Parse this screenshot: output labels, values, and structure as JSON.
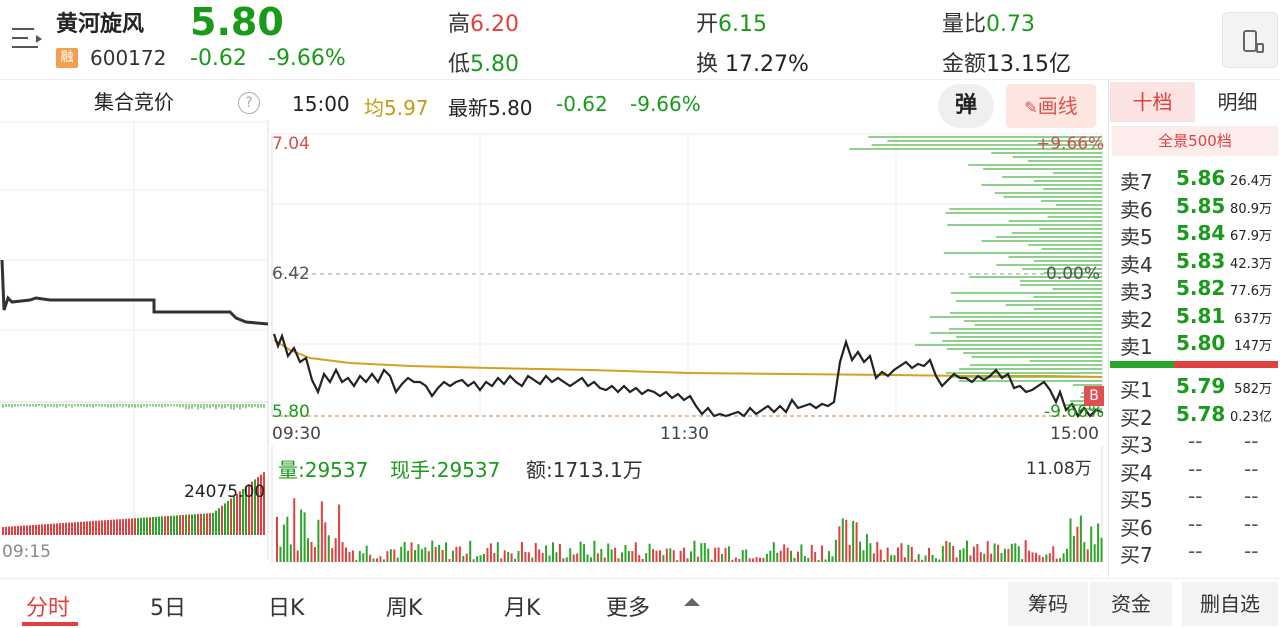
{
  "stock": {
    "name": "黄河旋风",
    "badge": "融",
    "code": "600172",
    "price": "5.80",
    "change": "-0.62",
    "change_pct": "-9.66%"
  },
  "quote": {
    "high_label": "高",
    "high": "6.20",
    "low_label": "低",
    "low": "5.80",
    "open_label": "开",
    "open": "6.15",
    "turnover_label": "换",
    "turnover": "17.27%",
    "vol_ratio_label": "量比",
    "vol_ratio": "0.73",
    "amount_label": "金额",
    "amount": "13.15亿"
  },
  "auction": {
    "title": "集合竞价",
    "help": "?",
    "vol_label": "24075.00",
    "time": "09:15"
  },
  "infobar": {
    "time": "15:00",
    "avg": "均5.97",
    "latest": "最新5.80",
    "change": "-0.62",
    "change_pct": "-9.66%"
  },
  "buttons": {
    "tan": "弹",
    "huaxian": "画线"
  },
  "chart": {
    "y_top": "7.04",
    "y_mid": "6.42",
    "y_bot": "5.80",
    "pct_top": "+9.66%",
    "pct_mid": "0.00%",
    "pct_bot": "-9.66%",
    "x_start": "09:30",
    "x_mid": "11:30",
    "x_end": "15:00",
    "marker": "B"
  },
  "volume_info": {
    "vol": "量:29537",
    "now_hand": "现手:29537",
    "amount": "额:1713.1万",
    "max": "11.08万"
  },
  "chart_data": {
    "type": "line",
    "x": [
      "09:30",
      "11:30",
      "15:00"
    ],
    "ylim": [
      5.8,
      7.04
    ],
    "series": [],
    "annotations": [
      "均5.97"
    ]
  },
  "right_panel": {
    "tab_active": "十档",
    "tab_other": "明细",
    "full_book": "全景500档",
    "asks": [
      {
        "label": "卖7",
        "price": "5.86",
        "vol": "26.4万"
      },
      {
        "label": "卖6",
        "price": "5.85",
        "vol": "80.9万"
      },
      {
        "label": "卖5",
        "price": "5.84",
        "vol": "67.9万"
      },
      {
        "label": "卖4",
        "price": "5.83",
        "vol": "42.3万"
      },
      {
        "label": "卖3",
        "price": "5.82",
        "vol": "77.6万"
      },
      {
        "label": "卖2",
        "price": "5.81",
        "vol": "637万"
      },
      {
        "label": "卖1",
        "price": "5.80",
        "vol": "147万"
      }
    ],
    "bids": [
      {
        "label": "买1",
        "price": "5.79",
        "vol": "582万"
      },
      {
        "label": "买2",
        "price": "5.78",
        "vol": "0.23亿"
      },
      {
        "label": "买3",
        "price": "--",
        "vol": "--"
      },
      {
        "label": "买4",
        "price": "--",
        "vol": "--"
      },
      {
        "label": "买5",
        "price": "--",
        "vol": "--"
      },
      {
        "label": "买6",
        "price": "--",
        "vol": "--"
      },
      {
        "label": "买7",
        "price": "--",
        "vol": "--"
      }
    ]
  },
  "bottom_tabs": {
    "fenshi": "分时",
    "day5": "5日",
    "dayk": "日K",
    "weekk": "周K",
    "monthk": "月K",
    "more": "更多",
    "chouma": "筹码",
    "zijin": "资金",
    "shanzixuan": "删自选"
  }
}
